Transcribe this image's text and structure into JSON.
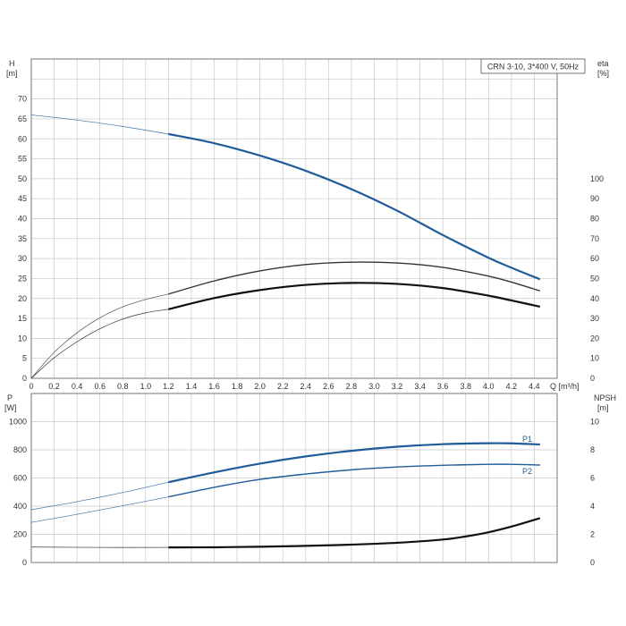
{
  "chart_data": [
    {
      "type": "line",
      "panel": "upper",
      "title_box": "CRN 3-10, 3*400 V, 50Hz",
      "xlabel": "Q [m³/h]",
      "ylabel_left": [
        "H",
        "[m]"
      ],
      "ylabel_right": [
        "eta",
        "[%]"
      ],
      "xlim": [
        0,
        4.6
      ],
      "ylim_left": [
        0,
        80
      ],
      "ylim_right_eta": [
        0,
        160
      ],
      "x_ticks": [
        "0",
        "0.2",
        "0.4",
        "0.6",
        "0.8",
        "1.0",
        "1.2",
        "1.4",
        "1.6",
        "1.8",
        "2.0",
        "2.2",
        "2.4",
        "2.6",
        "2.8",
        "3.0",
        "3.2",
        "3.4",
        "3.6",
        "3.8",
        "4.0",
        "4.2",
        "4.4"
      ],
      "y_ticks_left": [
        "0",
        "5",
        "10",
        "15",
        "20",
        "25",
        "30",
        "35",
        "40",
        "45",
        "50",
        "55",
        "60",
        "65",
        "70"
      ],
      "y_ticks_right": [
        "0",
        "10",
        "20",
        "30",
        "40",
        "50",
        "60",
        "70",
        "80",
        "90",
        "100"
      ],
      "grid": true,
      "operating_range_start_q": 1.2,
      "series": [
        {
          "axis": "left",
          "color": "#1f5c99",
          "x": [
            0,
            0.4,
            0.8,
            1.2,
            1.6,
            2.0,
            2.4,
            2.8,
            3.2,
            3.6,
            4.0,
            4.2,
            4.45
          ],
          "values": [
            66,
            64.7,
            63.1,
            61.2,
            58.9,
            55.8,
            52,
            47.4,
            42,
            35.9,
            30.2,
            27.7,
            24.8
          ]
        },
        {
          "axis": "right",
          "color": "#333333",
          "x": [
            0,
            0.2,
            0.4,
            0.6,
            0.8,
            1.0,
            1.2,
            1.6,
            2.0,
            2.4,
            2.8,
            3.2,
            3.6,
            4.0,
            4.2,
            4.45
          ],
          "values": [
            0,
            13,
            22.8,
            30.3,
            35.8,
            39.5,
            42.2,
            48.8,
            53.8,
            57,
            58.2,
            57.8,
            55.6,
            51.2,
            48.2,
            43.8
          ]
        },
        {
          "axis": "right",
          "color": "#111111",
          "x": [
            0,
            0.2,
            0.4,
            0.6,
            0.8,
            1.0,
            1.2,
            1.6,
            2.0,
            2.4,
            2.8,
            3.2,
            3.6,
            4.0,
            4.2,
            4.45
          ],
          "values": [
            0,
            10.3,
            18.3,
            24.8,
            29.7,
            32.8,
            34.6,
            40.2,
            44.2,
            46.8,
            47.8,
            47.3,
            45.2,
            41.4,
            39,
            35.9
          ]
        }
      ]
    },
    {
      "type": "line",
      "panel": "lower",
      "ylabel_left": [
        "P",
        "[W]"
      ],
      "ylabel_right": [
        "NPSH",
        "[m]"
      ],
      "xlim": [
        0,
        4.6
      ],
      "ylim_left": [
        0,
        1200
      ],
      "ylim_right": [
        0,
        12
      ],
      "y_ticks_left": [
        "0",
        "200",
        "400",
        "600",
        "800",
        "1000"
      ],
      "y_ticks_right": [
        "0",
        "2",
        "4",
        "6",
        "8",
        "10"
      ],
      "grid": true,
      "operating_range_start_q": 1.2,
      "series": [
        {
          "name": "P1",
          "axis": "left",
          "color": "#1f5c99",
          "x": [
            0,
            0.4,
            0.8,
            1.2,
            1.6,
            2.0,
            2.4,
            2.8,
            3.2,
            3.6,
            4.0,
            4.2,
            4.45
          ],
          "values": [
            375,
            432,
            497,
            570,
            640,
            702,
            753,
            793,
            822,
            840,
            847,
            846,
            838
          ]
        },
        {
          "name": "P2",
          "axis": "left",
          "color": "#1f5c99",
          "x": [
            0,
            0.4,
            0.8,
            1.2,
            1.6,
            2.0,
            2.4,
            2.8,
            3.2,
            3.6,
            4.0,
            4.2,
            4.45
          ],
          "values": [
            285,
            342,
            403,
            466,
            534,
            590,
            628,
            658,
            678,
            690,
            697,
            697,
            692
          ]
        },
        {
          "axis": "right",
          "color": "#111111",
          "x": [
            0,
            0.6,
            1.2,
            1.6,
            2.0,
            2.4,
            2.8,
            3.2,
            3.6,
            3.8,
            4.0,
            4.2,
            4.45
          ],
          "values": [
            1.1,
            1.07,
            1.07,
            1.08,
            1.12,
            1.18,
            1.27,
            1.4,
            1.63,
            1.85,
            2.15,
            2.55,
            3.15
          ]
        }
      ]
    }
  ]
}
